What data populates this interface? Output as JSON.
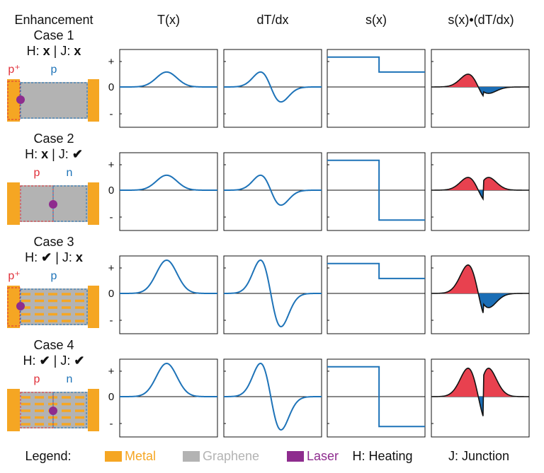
{
  "headers": [
    "Enhancement",
    "T(x)",
    "dT/dx",
    "s(x)",
    "s(x)•(dT/dx)"
  ],
  "y_ticks": [
    "+",
    "0",
    "-"
  ],
  "cases": [
    {
      "title": "Case 1",
      "heating": "x",
      "junction": "x",
      "left_label": "p⁺",
      "right_label": "p",
      "left_color": "#e0303a",
      "right_color": "#1e73b8",
      "device": "pplus-p-edge",
      "T_amp": 0.45,
      "s_left": 0.9,
      "s_right": 0.45,
      "grating": false
    },
    {
      "title": "Case 2",
      "heating": "x",
      "junction": "✔",
      "left_label": "p",
      "right_label": "n",
      "left_color": "#e0303a",
      "right_color": "#1e73b8",
      "device": "p-n-center",
      "T_amp": 0.45,
      "s_left": 0.9,
      "s_right": -0.9,
      "grating": false
    },
    {
      "title": "Case 3",
      "heating": "✔",
      "junction": "x",
      "left_label": "p⁺",
      "right_label": "p",
      "left_color": "#e0303a",
      "right_color": "#1e73b8",
      "device": "pplus-p-edge",
      "T_amp": 1.0,
      "s_left": 0.9,
      "s_right": 0.45,
      "grating": true
    },
    {
      "title": "Case 4",
      "heating": "✔",
      "junction": "✔",
      "left_label": "p",
      "right_label": "n",
      "left_color": "#e0303a",
      "right_color": "#1e73b8",
      "device": "p-n-center",
      "T_amp": 1.0,
      "s_left": 0.9,
      "s_right": -0.9,
      "grating": true
    }
  ],
  "legend": {
    "title": "Legend:",
    "items": [
      {
        "label": "Metal",
        "color": "#f5a623"
      },
      {
        "label": "Graphene",
        "color": "#b3b3b3"
      },
      {
        "label": "Laser",
        "color": "#8e2c8e"
      }
    ],
    "heating": "H: Heating",
    "junction": "J: Junction"
  },
  "colors": {
    "curve": "#1e73b8",
    "positive_fill": "#e8414f",
    "negative_fill": "#1a6db5",
    "metal": "#f5a623",
    "graphene": "#b3b3b3",
    "laser": "#8e2c8e"
  }
}
